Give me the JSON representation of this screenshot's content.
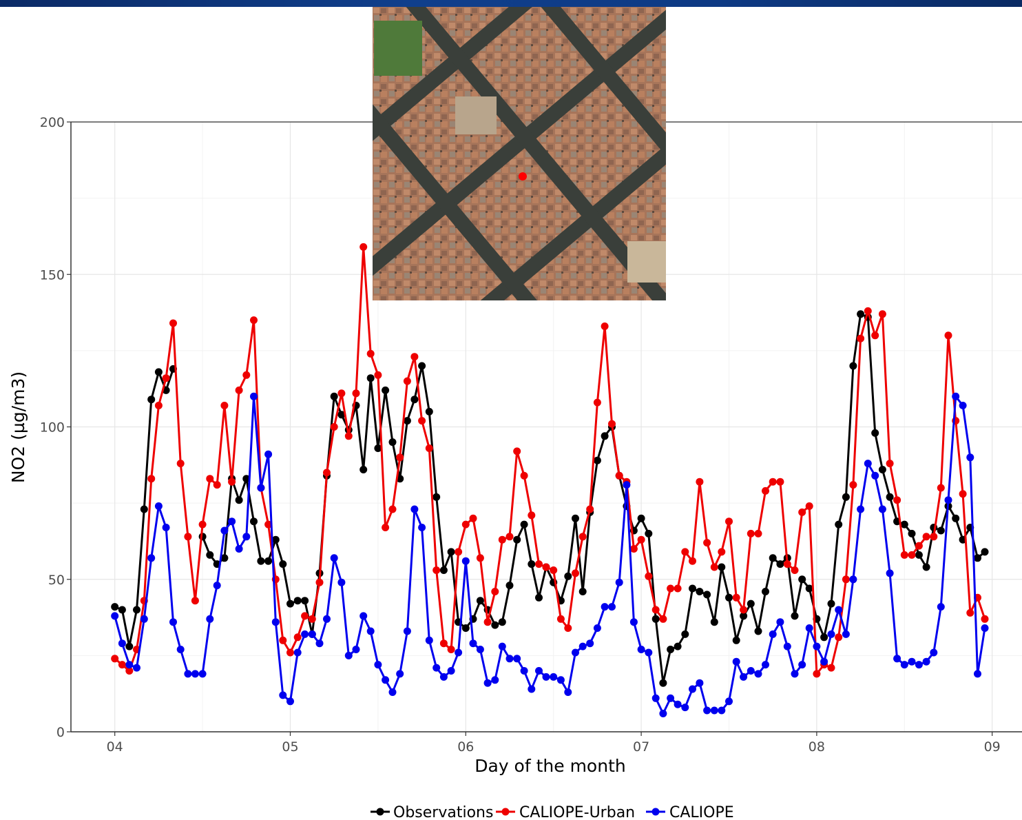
{
  "chart_data": {
    "type": "line",
    "xlabel": "Day of the month",
    "ylabel": "NO2 (µg/m3)",
    "x_unit": "day of month (fractional)",
    "xlim": [
      3.75,
      9.17
    ],
    "ylim": [
      0,
      200
    ],
    "x_ticks": [
      4,
      5,
      6,
      7,
      8,
      9
    ],
    "x_tick_labels": [
      "04",
      "05",
      "06",
      "07",
      "08",
      "09"
    ],
    "y_ticks": [
      0,
      50,
      100,
      150,
      200
    ],
    "y_tick_labels": [
      "0",
      "50",
      "100",
      "150",
      "200"
    ],
    "grid": true,
    "legend_position": "bottom",
    "x": [
      4.0,
      4.042,
      4.083,
      4.125,
      4.167,
      4.208,
      4.25,
      4.292,
      4.333,
      4.375,
      4.417,
      4.458,
      4.5,
      4.542,
      4.583,
      4.625,
      4.667,
      4.708,
      4.75,
      4.792,
      4.833,
      4.875,
      4.917,
      4.958,
      5.0,
      5.042,
      5.083,
      5.125,
      5.167,
      5.208,
      5.25,
      5.292,
      5.333,
      5.375,
      5.417,
      5.458,
      5.5,
      5.542,
      5.583,
      5.625,
      5.667,
      5.708,
      5.75,
      5.792,
      5.833,
      5.875,
      5.917,
      5.958,
      6.0,
      6.042,
      6.083,
      6.125,
      6.167,
      6.208,
      6.25,
      6.292,
      6.333,
      6.375,
      6.417,
      6.458,
      6.5,
      6.542,
      6.583,
      6.625,
      6.667,
      6.708,
      6.75,
      6.792,
      6.833,
      6.875,
      6.917,
      6.958,
      7.0,
      7.042,
      7.083,
      7.125,
      7.167,
      7.208,
      7.25,
      7.292,
      7.333,
      7.375,
      7.417,
      7.458,
      7.5,
      7.542,
      7.583,
      7.625,
      7.667,
      7.708,
      7.75,
      7.792,
      7.833,
      7.875,
      7.917,
      7.958,
      8.0,
      8.042,
      8.083,
      8.125,
      8.167,
      8.208,
      8.25,
      8.292,
      8.333,
      8.375,
      8.417,
      8.458,
      8.5,
      8.542,
      8.583,
      8.625,
      8.667,
      8.708,
      8.75,
      8.792,
      8.833,
      8.875,
      8.917,
      8.958
    ],
    "series": [
      {
        "name": "Observations",
        "color": "#000000",
        "values": [
          41,
          40,
          28,
          40,
          73,
          109,
          118,
          112,
          119,
          null,
          null,
          null,
          64,
          58,
          55,
          57,
          83,
          76,
          83,
          69,
          56,
          56,
          63,
          55,
          42,
          43,
          43,
          32,
          52,
          84,
          110,
          104,
          99,
          107,
          86,
          116,
          93,
          112,
          95,
          83,
          102,
          109,
          120,
          105,
          77,
          53,
          59,
          36,
          34,
          37,
          43,
          40,
          35,
          36,
          48,
          63,
          68,
          55,
          44,
          54,
          49,
          43,
          51,
          70,
          46,
          72,
          89,
          97,
          100,
          84,
          74,
          66,
          70,
          65,
          37,
          16,
          27,
          28,
          32,
          47,
          46,
          45,
          36,
          54,
          44,
          30,
          38,
          42,
          33,
          46,
          57,
          55,
          57,
          38,
          50,
          47,
          37,
          31,
          42,
          68,
          77,
          120,
          137,
          136,
          98,
          86,
          77,
          69,
          68,
          65,
          58,
          54,
          67,
          66,
          74,
          70,
          63,
          67,
          57,
          59
        ]
      },
      {
        "name": "CALIOPE-Urban",
        "color": "#ee0000",
        "values": [
          24,
          22,
          20,
          27,
          43,
          83,
          107,
          116,
          134,
          88,
          64,
          43,
          68,
          83,
          81,
          107,
          82,
          112,
          117,
          135,
          80,
          68,
          50,
          30,
          26,
          31,
          38,
          37,
          49,
          85,
          100,
          111,
          97,
          111,
          159,
          124,
          117,
          67,
          73,
          90,
          115,
          123,
          102,
          93,
          53,
          29,
          27,
          59,
          68,
          70,
          57,
          36,
          46,
          63,
          64,
          92,
          84,
          71,
          55,
          54,
          53,
          37,
          34,
          52,
          64,
          73,
          108,
          133,
          101,
          84,
          82,
          60,
          63,
          51,
          40,
          37,
          47,
          47,
          59,
          56,
          82,
          62,
          54,
          59,
          69,
          44,
          40,
          65,
          65,
          79,
          82,
          82,
          55,
          53,
          72,
          74,
          19,
          22,
          21,
          31,
          50,
          81,
          129,
          138,
          130,
          137,
          88,
          76,
          58,
          58,
          61,
          64,
          64,
          80,
          130,
          102,
          78,
          39,
          44,
          37
        ]
      },
      {
        "name": "CALIOPE",
        "color": "#0000ee",
        "values": [
          38,
          29,
          22,
          21,
          37,
          57,
          74,
          67,
          36,
          27,
          19,
          19,
          19,
          37,
          48,
          66,
          69,
          60,
          64,
          110,
          80,
          91,
          36,
          12,
          10,
          26,
          32,
          32,
          29,
          37,
          57,
          49,
          25,
          27,
          38,
          33,
          22,
          17,
          13,
          19,
          33,
          73,
          67,
          30,
          21,
          18,
          20,
          26,
          56,
          29,
          27,
          16,
          17,
          28,
          24,
          24,
          20,
          14,
          20,
          18,
          18,
          17,
          13,
          26,
          28,
          29,
          34,
          41,
          41,
          49,
          81,
          36,
          27,
          26,
          11,
          6,
          11,
          9,
          8,
          14,
          16,
          7,
          7,
          7,
          10,
          23,
          18,
          20,
          19,
          22,
          32,
          36,
          28,
          19,
          22,
          34,
          28,
          23,
          32,
          40,
          32,
          50,
          73,
          88,
          84,
          73,
          52,
          24,
          22,
          23,
          22,
          23,
          26,
          41,
          76,
          110,
          107,
          90,
          19,
          34
        ]
      }
    ]
  },
  "legend": {
    "items": [
      "Observations",
      "CALIOPE-Urban",
      "CALIOPE"
    ]
  }
}
